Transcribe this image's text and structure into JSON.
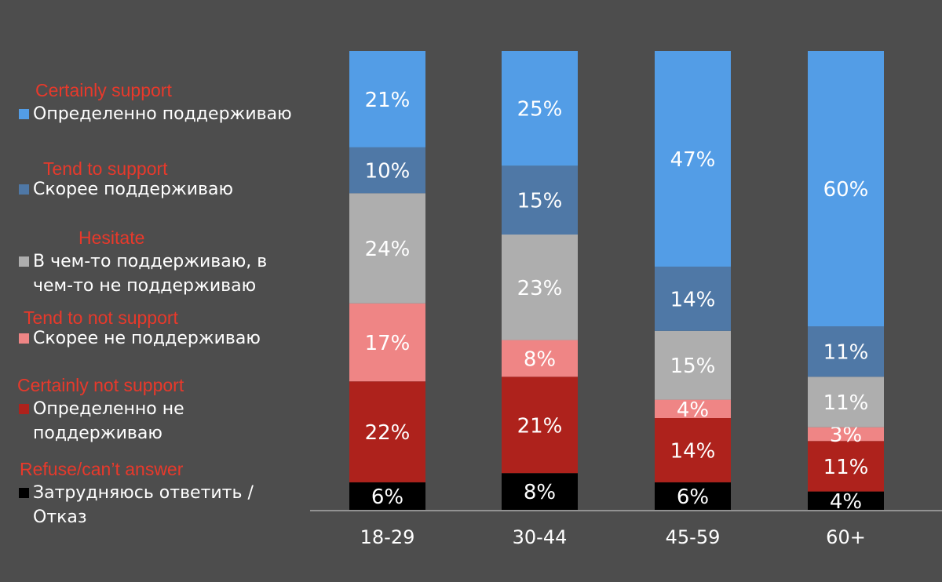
{
  "chart_data": {
    "type": "stacked_bar",
    "categories": [
      "18-29",
      "30-44",
      "45-59",
      "60+"
    ],
    "ylim": [
      0,
      100
    ],
    "series": [
      {
        "name": "Определенно поддерживаю",
        "label_en": "Certainly support",
        "color": "#539de6",
        "values": [
          21,
          25,
          47,
          60
        ],
        "value_labels": [
          "21%",
          "25%",
          "47%",
          "60%"
        ]
      },
      {
        "name": "Скорее поддерживаю",
        "label_en": "Tend to support",
        "color": "#4f78a6",
        "values": [
          10,
          15,
          14,
          11
        ],
        "value_labels": [
          "10%",
          "15%",
          "14%",
          "11%"
        ]
      },
      {
        "name": "В чем-то поддерживаю, в чем-то не поддерживаю",
        "label_en": "Hesitate",
        "color": "#aeaeae",
        "values": [
          24,
          23,
          15,
          11
        ],
        "value_labels": [
          "24%",
          "23%",
          "15%",
          "11%"
        ]
      },
      {
        "name": "Скорее не поддерживаю",
        "label_en": "Tend to not support",
        "color": "#ef8585",
        "values": [
          17,
          8,
          4,
          3
        ],
        "value_labels": [
          "17%",
          "8%",
          "4%",
          "3%"
        ]
      },
      {
        "name": "Определенно не поддерживаю",
        "label_en": "Certainly not support",
        "color": "#ae221c",
        "values": [
          22,
          21,
          14,
          11
        ],
        "value_labels": [
          "22%",
          "21%",
          "14%",
          "11%"
        ]
      },
      {
        "name": "Затрудняюсь ответить / Отказ",
        "label_en": "Refuse/can’t answer",
        "color": "#000000",
        "values": [
          6,
          8,
          6,
          4
        ],
        "value_labels": [
          "6%",
          "8%",
          "6%",
          "4%"
        ]
      }
    ]
  }
}
